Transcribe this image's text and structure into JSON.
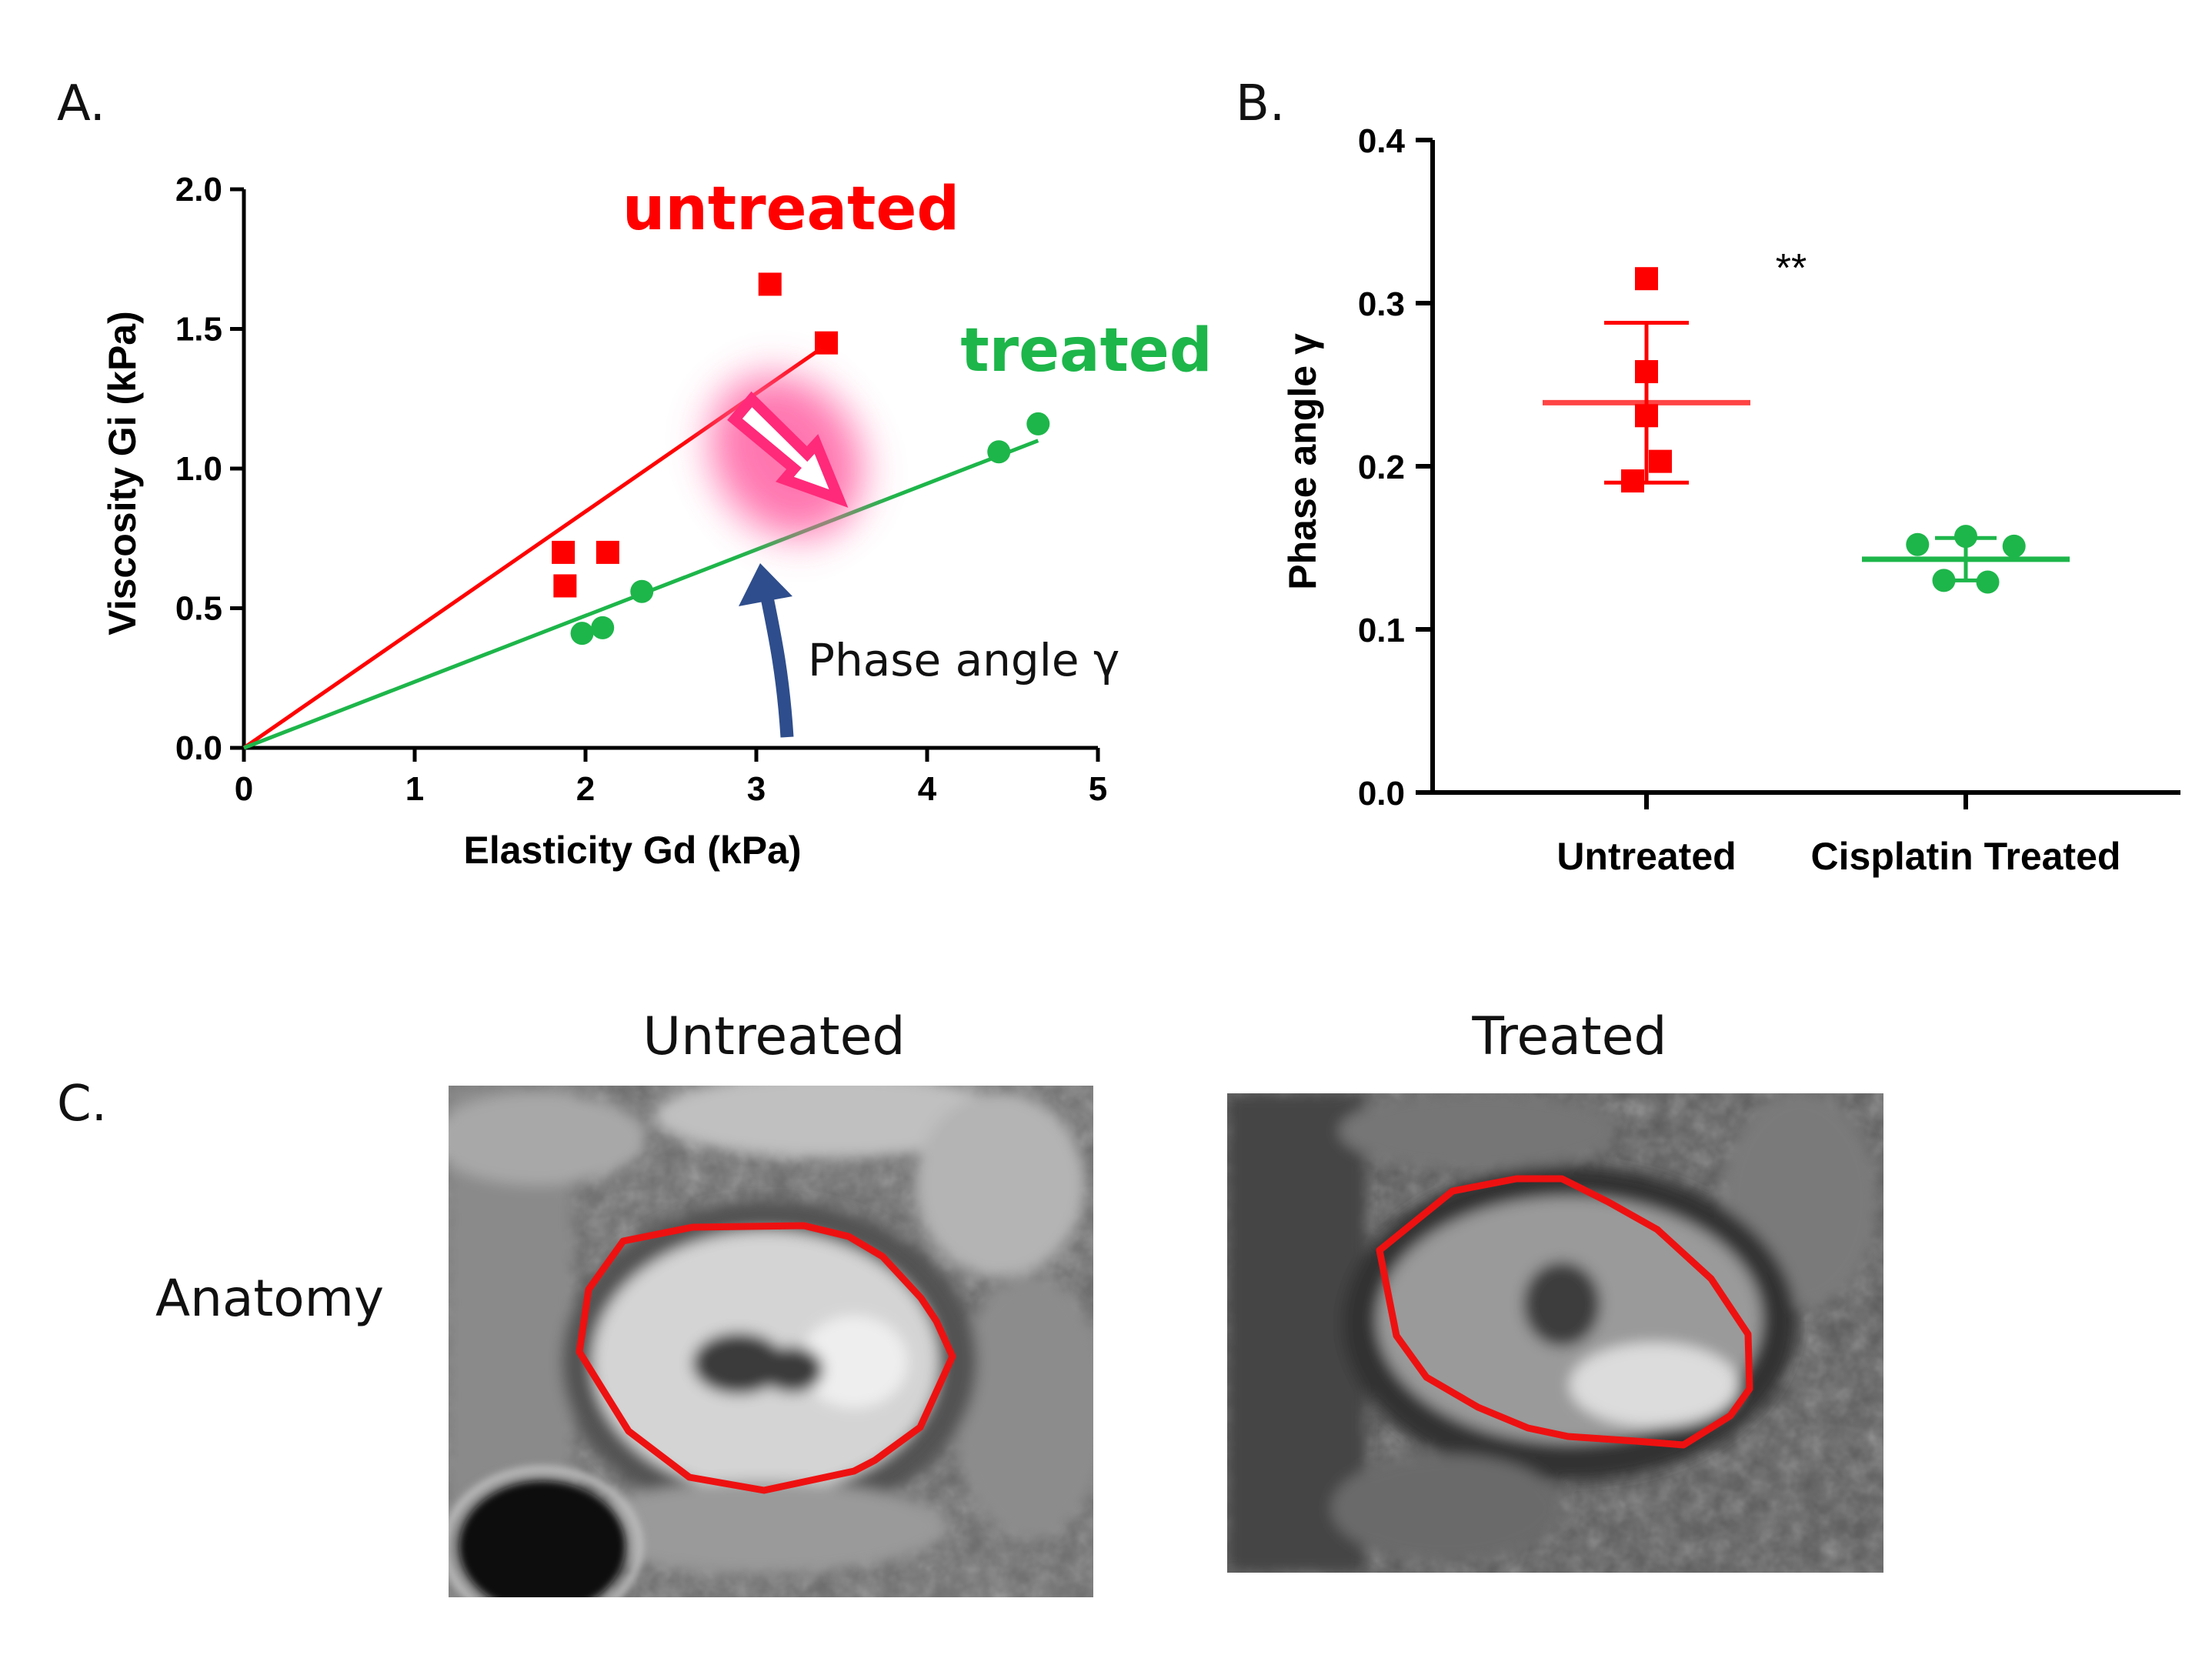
{
  "panels": {
    "a_letter": "A.",
    "b_letter": "B.",
    "c_letter": "C."
  },
  "colors": {
    "untreated": "#ff0000",
    "treated": "#1db64a",
    "arrow_pink": "#ff2a7a",
    "arrow_blue": "#2e4d8c",
    "roi": "#ee1111"
  },
  "chart_data": [
    {
      "type": "scatter",
      "xlabel": "Elasticity Gd (kPa)",
      "ylabel": "Viscosity Gi (kPa)",
      "xlim": [
        0,
        5
      ],
      "ylim": [
        0,
        2.0
      ],
      "xticks": [
        "0",
        "1",
        "2",
        "3",
        "4",
        "5"
      ],
      "yticks": [
        "0.0",
        "0.5",
        "1.0",
        "1.5",
        "2.0"
      ],
      "series": [
        {
          "name": "untreated",
          "marker": "square",
          "color": "#ff0000",
          "points": [
            [
              1.87,
              0.7
            ],
            [
              2.13,
              0.7
            ],
            [
              1.88,
              0.58
            ],
            [
              3.08,
              1.66
            ],
            [
              3.41,
              1.45
            ]
          ]
        },
        {
          "name": "treated",
          "marker": "circle",
          "color": "#1db64a",
          "points": [
            [
              1.98,
              0.41
            ],
            [
              2.1,
              0.43
            ],
            [
              2.33,
              0.56
            ],
            [
              4.42,
              1.06
            ],
            [
              4.65,
              1.16
            ]
          ]
        }
      ],
      "fit_lines": [
        {
          "series": "untreated",
          "from": [
            0,
            0
          ],
          "to": [
            3.38,
            1.43
          ]
        },
        {
          "series": "treated",
          "from": [
            0,
            0
          ],
          "to": [
            4.65,
            1.1
          ]
        }
      ],
      "annotation": "Phase angle γ"
    },
    {
      "type": "scatter",
      "ylabel": "Phase angle γ",
      "ylim": [
        0,
        0.4
      ],
      "yticks": [
        "0.0",
        "0.1",
        "0.2",
        "0.3",
        "0.4"
      ],
      "categories": [
        "Untreated",
        "Cisplatin Treated"
      ],
      "significance": "**",
      "groups": [
        {
          "category": "Untreated",
          "marker": "square",
          "color": "#ff0000",
          "values": [
            0.315,
            0.258,
            0.231,
            0.203,
            0.191
          ],
          "offsets": [
            0,
            0,
            0,
            0.3,
            -0.3
          ],
          "mean": 0.239,
          "sd": 0.049
        },
        {
          "category": "Cisplatin Treated",
          "marker": "circle",
          "color": "#1db64a",
          "values": [
            0.157,
            0.152,
            0.151,
            0.13,
            0.129
          ],
          "offsets": [
            0,
            -0.55,
            0.55,
            -0.25,
            0.25
          ],
          "mean": 0.143,
          "sd": 0.013
        }
      ]
    }
  ],
  "images": {
    "untreated_title": "Untreated",
    "treated_title": "Treated",
    "row_label": "Anatomy"
  }
}
